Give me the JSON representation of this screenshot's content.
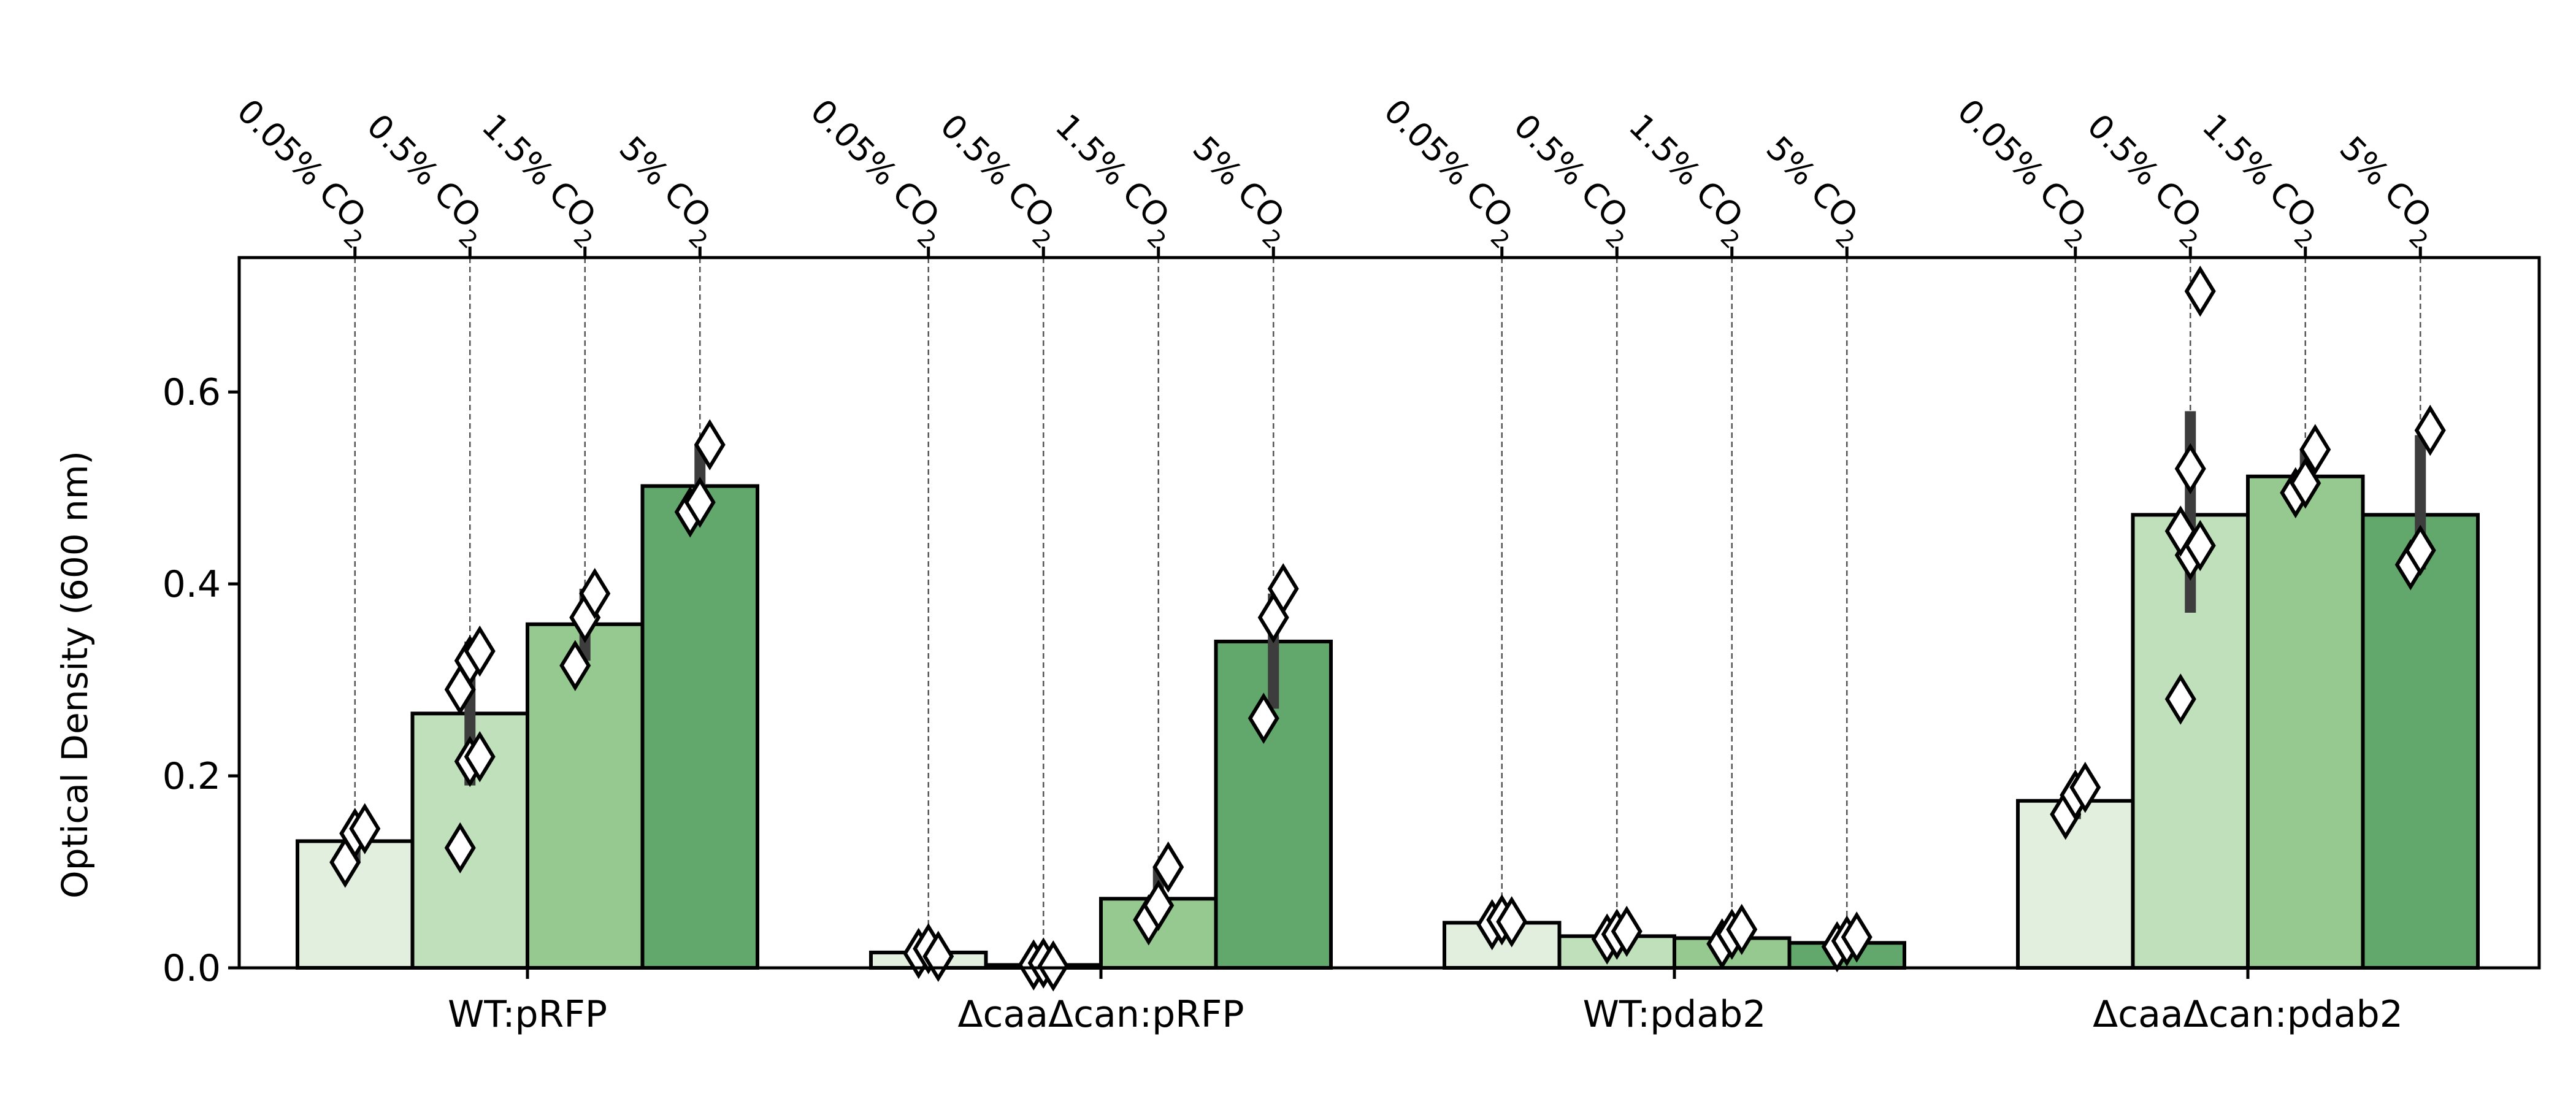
{
  "chart_data": {
    "type": "bar",
    "title": "",
    "xlabel": "",
    "ylabel": "Optical Density (600 nm)",
    "ylim": [
      0,
      0.74
    ],
    "yticks": [
      0.0,
      0.2,
      0.4,
      0.6
    ],
    "ytick_labels": [
      "0.0",
      "0.2",
      "0.4",
      "0.6"
    ],
    "grid": false,
    "legend": "none",
    "categories": [
      "WT:pRFP",
      "ΔcaaΔcan:pRFP",
      "WT:pdab2",
      "ΔcaaΔcan:pdab2"
    ],
    "series": [
      {
        "name": "0.05% CO2",
        "label_main": "0.05% CO",
        "label_sub": "2",
        "color": "#e2efdf",
        "values": [
          0.132,
          0.016,
          0.047,
          0.174
        ],
        "err_low": [
          0.11,
          0.01,
          0.04,
          0.155
        ],
        "err_high": [
          0.15,
          0.022,
          0.055,
          0.19
        ],
        "points": [
          [
            0.11,
            0.14,
            0.145
          ],
          [
            0.015,
            0.02,
            0.012
          ],
          [
            0.045,
            0.05,
            0.048
          ],
          [
            0.16,
            0.18,
            0.188
          ]
        ]
      },
      {
        "name": "0.5% CO2",
        "label_main": "0.5% CO",
        "label_sub": "2",
        "color": "#c0dfbb",
        "values": [
          0.265,
          0.003,
          0.033,
          0.472
        ],
        "err_low": [
          0.19,
          0.0,
          0.025,
          0.37
        ],
        "err_high": [
          0.34,
          0.008,
          0.04,
          0.58
        ],
        "points": [
          [
            0.125,
            0.215,
            0.22,
            0.29,
            0.32,
            0.33
          ],
          [
            0.003,
            0.005,
            0.002
          ],
          [
            0.03,
            0.035,
            0.038
          ],
          [
            0.28,
            0.43,
            0.44,
            0.455,
            0.52,
            0.705
          ]
        ]
      },
      {
        "name": "1.5% CO2",
        "label_main": "1.5% CO",
        "label_sub": "2",
        "color": "#96c98f",
        "values": [
          0.358,
          0.072,
          0.031,
          0.512
        ],
        "err_low": [
          0.32,
          0.05,
          0.025,
          0.495
        ],
        "err_high": [
          0.395,
          0.105,
          0.04,
          0.54
        ],
        "points": [
          [
            0.315,
            0.365,
            0.39
          ],
          [
            0.05,
            0.065,
            0.105
          ],
          [
            0.025,
            0.035,
            0.04
          ],
          [
            0.495,
            0.505,
            0.54
          ]
        ]
      },
      {
        "name": "5% CO2",
        "label_main": "5% CO",
        "label_sub": "2",
        "color": "#62a76c",
        "values": [
          0.502,
          0.34,
          0.026,
          0.472
        ],
        "err_low": [
          0.475,
          0.27,
          0.02,
          0.415
        ],
        "err_high": [
          0.545,
          0.39,
          0.035,
          0.555
        ],
        "points": [
          [
            0.475,
            0.485,
            0.545
          ],
          [
            0.26,
            0.365,
            0.395
          ],
          [
            0.022,
            0.028,
            0.032
          ],
          [
            0.42,
            0.435,
            0.56
          ]
        ]
      }
    ]
  }
}
